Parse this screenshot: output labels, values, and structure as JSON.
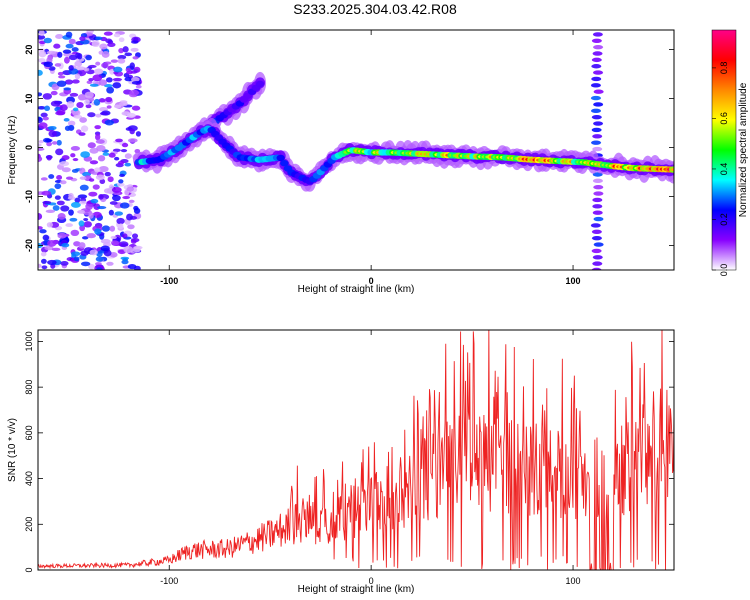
{
  "title": "S233.2025.304.03.42.R08",
  "chart_data": [
    {
      "type": "heatmap",
      "xlabel": "Height of straight line (km)",
      "ylabel": "Frequency (Hz)",
      "xlim": [
        -165,
        150
      ],
      "ylim": [
        -25,
        24
      ],
      "xticks": [
        -100,
        0,
        100
      ],
      "yticks": [
        -20,
        -10,
        0,
        10,
        20
      ],
      "xtick_labels": [
        "-100",
        "0",
        "100"
      ],
      "ytick_labels": [
        "-20",
        "-10",
        "0",
        "10",
        "20"
      ],
      "colorbar": {
        "label": "Normalized spectral amplitude",
        "range": [
          0,
          0.95
        ],
        "ticks": [
          0.0,
          0.2,
          0.4,
          0.6,
          0.8
        ],
        "tick_labels": [
          "0.0",
          "0.2",
          "0.4",
          "0.6",
          "0.8"
        ],
        "colors": [
          "#ffffff",
          "#8800ff",
          "#0000ff",
          "#00ffff",
          "#00ff00",
          "#ffff00",
          "#ff8800",
          "#ff0000",
          "#ff0088"
        ]
      },
      "noise_region_x": [
        -165,
        -115
      ],
      "band_x": [
        108,
        116
      ],
      "trace": [
        {
          "x": -115,
          "y": -3,
          "a": 0.45
        },
        {
          "x": -105,
          "y": -2.5,
          "a": 0.35
        },
        {
          "x": -95,
          "y": 0,
          "a": 0.4
        },
        {
          "x": -85,
          "y": 3,
          "a": 0.4
        },
        {
          "x": -80,
          "y": 4,
          "a": 0.35
        },
        {
          "x": -72,
          "y": 0.5,
          "a": 0.3
        },
        {
          "x": -65,
          "y": -2,
          "a": 0.3
        },
        {
          "x": -55,
          "y": -2.5,
          "a": 0.4
        },
        {
          "x": -45,
          "y": -2,
          "a": 0.35
        },
        {
          "x": -40,
          "y": -5,
          "a": 0.35
        },
        {
          "x": -30,
          "y": -7,
          "a": 0.3
        },
        {
          "x": -25,
          "y": -5,
          "a": 0.35
        },
        {
          "x": -18,
          "y": -2,
          "a": 0.45
        },
        {
          "x": -10,
          "y": -0.5,
          "a": 0.6
        },
        {
          "x": 0,
          "y": -1,
          "a": 0.55
        },
        {
          "x": 10,
          "y": -1,
          "a": 0.6
        },
        {
          "x": 20,
          "y": -1.2,
          "a": 0.6
        },
        {
          "x": 35,
          "y": -1.5,
          "a": 0.7
        },
        {
          "x": 50,
          "y": -1.8,
          "a": 0.6
        },
        {
          "x": 65,
          "y": -2,
          "a": 0.7
        },
        {
          "x": 80,
          "y": -2.5,
          "a": 0.75
        },
        {
          "x": 95,
          "y": -2.8,
          "a": 0.7
        },
        {
          "x": 105,
          "y": -3,
          "a": 0.6
        },
        {
          "x": 120,
          "y": -3.8,
          "a": 0.75
        },
        {
          "x": 130,
          "y": -4.2,
          "a": 0.8
        },
        {
          "x": 150,
          "y": -4.5,
          "a": 0.8
        }
      ],
      "branch": [
        {
          "x": -85,
          "y": 3,
          "a": 0.3
        },
        {
          "x": -75,
          "y": 6,
          "a": 0.3
        },
        {
          "x": -65,
          "y": 9,
          "a": 0.25
        },
        {
          "x": -55,
          "y": 13,
          "a": 0.2
        }
      ]
    },
    {
      "type": "line",
      "xlabel": "Height of straight line (km)",
      "ylabel": "SNR (10 * v/v)",
      "xlim": [
        -165,
        150
      ],
      "ylim": [
        0,
        1050
      ],
      "xticks": [
        -100,
        0,
        100
      ],
      "yticks": [
        0,
        200,
        400,
        600,
        800,
        1000
      ],
      "xtick_labels": [
        "-100",
        "0",
        "100"
      ],
      "ytick_labels": [
        "0",
        "200",
        "400",
        "600",
        "800",
        "1000"
      ],
      "series": [
        {
          "name": "SNR",
          "color": "#ee2222",
          "envelope": [
            {
              "x": -165,
              "y": 20
            },
            {
              "x": -120,
              "y": 25
            },
            {
              "x": -100,
              "y": 50
            },
            {
              "x": -90,
              "y": 100
            },
            {
              "x": -70,
              "y": 110
            },
            {
              "x": -50,
              "y": 180
            },
            {
              "x": -35,
              "y": 250
            },
            {
              "x": -20,
              "y": 250
            },
            {
              "x": -10,
              "y": 300
            },
            {
              "x": 0,
              "y": 330
            },
            {
              "x": 20,
              "y": 420
            },
            {
              "x": 40,
              "y": 560
            },
            {
              "x": 50,
              "y": 580
            },
            {
              "x": 70,
              "y": 540
            },
            {
              "x": 90,
              "y": 500
            },
            {
              "x": 105,
              "y": 490
            },
            {
              "x": 120,
              "y": 500
            },
            {
              "x": 135,
              "y": 560
            },
            {
              "x": 150,
              "y": 580
            }
          ],
          "dropouts": [
            [
              108,
              120
            ]
          ]
        }
      ]
    }
  ]
}
